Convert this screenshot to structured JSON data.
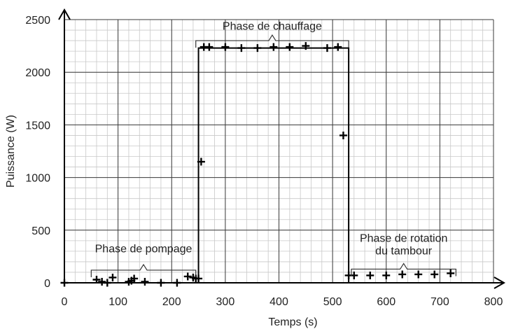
{
  "chart_data": {
    "type": "scatter",
    "title": "",
    "xlabel": "Temps (s)",
    "ylabel": "Puissance (W)",
    "xlim": [
      0,
      800
    ],
    "ylim": [
      0,
      2500
    ],
    "x_ticks": [
      0,
      100,
      200,
      300,
      400,
      500,
      600,
      700,
      800
    ],
    "y_ticks": [
      0,
      500,
      1000,
      1500,
      2000,
      2500
    ],
    "grid": true,
    "minor_grid": true,
    "series": [
      {
        "marker": "plus",
        "color": "#000000",
        "points": [
          [
            0,
            0
          ],
          [
            60,
            30
          ],
          [
            70,
            10
          ],
          [
            80,
            0
          ],
          [
            90,
            50
          ],
          [
            120,
            10
          ],
          [
            125,
            20
          ],
          [
            130,
            40
          ],
          [
            150,
            10
          ],
          [
            180,
            0
          ],
          [
            210,
            0
          ],
          [
            230,
            60
          ],
          [
            240,
            50
          ],
          [
            245,
            40
          ],
          [
            250,
            40
          ],
          [
            255,
            1150
          ],
          [
            260,
            2240
          ],
          [
            270,
            2240
          ],
          [
            300,
            2240
          ],
          [
            330,
            2230
          ],
          [
            360,
            2230
          ],
          [
            390,
            2240
          ],
          [
            420,
            2240
          ],
          [
            450,
            2250
          ],
          [
            490,
            2230
          ],
          [
            510,
            2240
          ],
          [
            520,
            1400
          ],
          [
            530,
            70
          ],
          [
            540,
            70
          ],
          [
            570,
            70
          ],
          [
            600,
            70
          ],
          [
            630,
            80
          ],
          [
            660,
            80
          ],
          [
            690,
            80
          ],
          [
            720,
            90
          ]
        ]
      }
    ],
    "step_line": {
      "color": "#000000",
      "points": [
        [
          0,
          0
        ],
        [
          250,
          0
        ],
        [
          250,
          2230
        ],
        [
          530,
          2230
        ],
        [
          530,
          0
        ],
        [
          540,
          0
        ]
      ]
    },
    "annotations": [
      {
        "text": "Phase de pompage",
        "x_range": [
          50,
          245
        ],
        "bracket_y": 120,
        "label_y": 330,
        "align": "center"
      },
      {
        "text": "Phase de chauffage",
        "x_range": [
          245,
          530
        ],
        "bracket_y": 2300,
        "label_y": 2445,
        "align": "center"
      },
      {
        "lines": [
          "Phase de rotation",
          "du tambour"
        ],
        "x_range": [
          535,
          730
        ],
        "bracket_y": 130,
        "label_y": [
          430,
          310
        ],
        "align": "center"
      }
    ]
  }
}
